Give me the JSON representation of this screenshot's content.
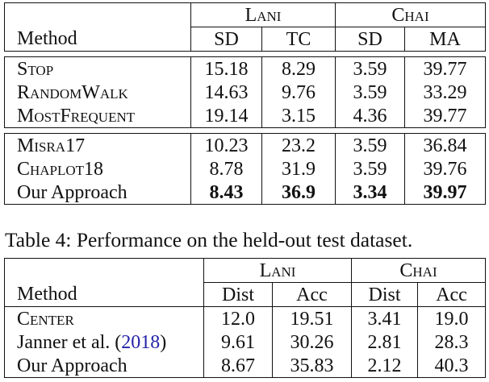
{
  "table3": {
    "groups": [
      "Lani",
      "Chai"
    ],
    "method_header": "Method",
    "columns": [
      "SD",
      "TC",
      "SD",
      "MA"
    ],
    "block1": [
      {
        "method": "Stop",
        "values": [
          "15.18",
          "8.29",
          "3.59",
          "39.77"
        ]
      },
      {
        "method": "RandomWalk",
        "values": [
          "14.63",
          "9.76",
          "3.59",
          "33.29"
        ]
      },
      {
        "method": "MostFrequent",
        "values": [
          "19.14",
          "3.15",
          "4.36",
          "39.77"
        ]
      }
    ],
    "block2": [
      {
        "method": "Misra17",
        "values": [
          "10.23",
          "23.2",
          "3.59",
          "36.84"
        ]
      },
      {
        "method": "Chaplot18",
        "values": [
          "8.78",
          "31.9",
          "3.59",
          "39.76"
        ]
      },
      {
        "method": "Our Approach",
        "values": [
          "8.43",
          "36.9",
          "3.34",
          "39.97"
        ]
      }
    ]
  },
  "caption": "Table 4: Performance on the held-out test dataset.",
  "table4": {
    "groups": [
      "Lani",
      "Chai"
    ],
    "method_header": "Method",
    "columns": [
      "Dist",
      "Acc",
      "Dist",
      "Acc"
    ],
    "rows": [
      {
        "method": "Center",
        "values": [
          "12.0",
          "19.51",
          "3.41",
          "19.0"
        ]
      },
      {
        "method_author": "Janner et al. (",
        "method_year": "2018",
        "method_close": ")",
        "values": [
          "9.61",
          "30.26",
          "2.81",
          "28.3"
        ]
      },
      {
        "method": "Our Approach",
        "values": [
          "8.67",
          "35.83",
          "2.12",
          "40.3"
        ]
      }
    ]
  }
}
